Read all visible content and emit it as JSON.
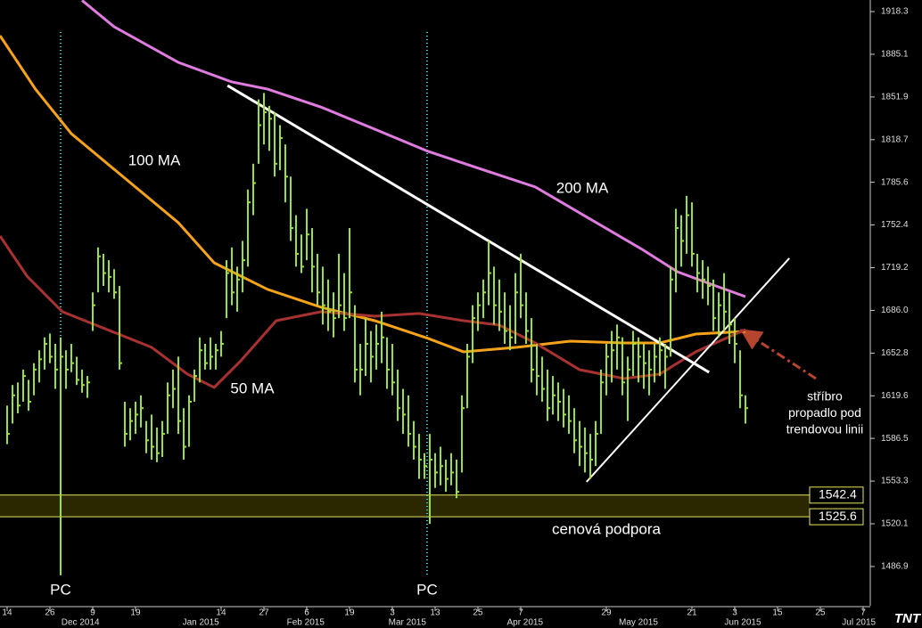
{
  "chart_data": {
    "type": "ohlc",
    "color": "#9be33c",
    "ylim": [
      1456.4,
      1927.3
    ],
    "xlim": [
      -1.33,
      161.17
    ],
    "yticks": [
      1918.3,
      1885.1,
      1851.9,
      1818.7,
      1785.6,
      1752.4,
      1719.2,
      {
        "value": 1686.0,
        "label": "1686.0"
      },
      1652.8,
      1619.6,
      1586.5,
      1553.3,
      1520.1,
      1486.9
    ],
    "xticks": [
      {
        "value": 0,
        "label": "14"
      },
      {
        "value": 8,
        "label": "26"
      },
      {
        "value": 16,
        "label": "9"
      },
      {
        "value": 24,
        "label": "19"
      },
      {
        "value": 40,
        "label": "14"
      },
      {
        "value": 48,
        "label": "27"
      },
      {
        "value": 56,
        "label": "6"
      },
      {
        "value": 64,
        "label": "19"
      },
      {
        "value": 72,
        "label": "3"
      },
      {
        "value": 80,
        "label": "13"
      },
      {
        "value": 88,
        "label": "25"
      },
      {
        "value": 96,
        "label": "7"
      },
      {
        "value": 112,
        "label": "29"
      },
      {
        "value": 128,
        "label": "21"
      },
      {
        "value": 136,
        "label": "3"
      },
      {
        "value": 144,
        "label": "15"
      },
      {
        "value": 152,
        "label": "25"
      },
      {
        "value": 160,
        "label": "7"
      }
    ],
    "month_labels": [
      {
        "value": 13.7,
        "label": "Dec 2014"
      },
      {
        "value": 36.2,
        "label": "Jan 2015"
      },
      {
        "value": 55.8,
        "label": "Feb 2015"
      },
      {
        "value": 74.8,
        "label": "Mar 2015"
      },
      {
        "value": 96.8,
        "label": "Apr 2015"
      },
      {
        "value": 118,
        "label": "May 2015"
      },
      {
        "value": 137.5,
        "label": "Jun 2015"
      },
      {
        "value": 159.2,
        "label": "Jul 2015"
      }
    ],
    "high": [
      1612,
      1628,
      1630,
      1640,
      1632,
      1645,
      1655,
      1665,
      1668,
      1660,
      1665,
      1655,
      1660,
      1650,
      1640,
      1635,
      1700,
      1735,
      1730,
      1725,
      1718,
      1705,
      1615,
      1610,
      1615,
      1620,
      1600,
      1605,
      1595,
      1600,
      1630,
      1640,
      1650,
      1610,
      1620,
      1640,
      1665,
      1660,
      1665,
      1660,
      1670,
      1725,
      1735,
      1720,
      1740,
      1780,
      1800,
      1850,
      1855,
      1845,
      1840,
      1830,
      1815,
      1790,
      1760,
      1745,
      1765,
      1750,
      1730,
      1720,
      1710,
      1700,
      1730,
      1715,
      1750,
      1690,
      1660,
      1680,
      1670,
      1675,
      1685,
      1665,
      1660,
      1640,
      1625,
      1620,
      1600,
      1590,
      1575,
      1590,
      1575,
      1580,
      1570,
      1575,
      1570,
      1620,
      1660,
      1690,
      1700,
      1710,
      1740,
      1720,
      1710,
      1700,
      1690,
      1715,
      1730,
      1700,
      1680,
      1660,
      1650,
      1640,
      1635,
      1630,
      1625,
      1620,
      1610,
      1600,
      1595,
      1590,
      1600,
      1640,
      1660,
      1670,
      1675,
      1665,
      1650,
      1670,
      1665,
      1660,
      1655,
      1660,
      1665,
      1660,
      1720,
      1765,
      1760,
      1775,
      1770,
      1730,
      1725,
      1720,
      1710,
      1700,
      1715,
      1700,
      1680,
      1655,
      1620
    ],
    "low": [
      1582,
      1598,
      1606,
      1615,
      1608,
      1620,
      1630,
      1640,
      1645,
      1625,
      1480,
      1625,
      1638,
      1628,
      1622,
      1618,
      1670,
      1700,
      1705,
      1700,
      1695,
      1640,
      1580,
      1585,
      1590,
      1595,
      1575,
      1570,
      1568,
      1572,
      1590,
      1610,
      1590,
      1570,
      1580,
      1615,
      1630,
      1640,
      1640,
      1640,
      1650,
      1680,
      1690,
      1685,
      1700,
      1720,
      1760,
      1800,
      1815,
      1810,
      1790,
      1795,
      1770,
      1740,
      1720,
      1715,
      1725,
      1700,
      1690,
      1675,
      1670,
      1665,
      1680,
      1670,
      1680,
      1630,
      1620,
      1635,
      1630,
      1640,
      1645,
      1625,
      1620,
      1600,
      1590,
      1580,
      1570,
      1555,
      1555,
      1520,
      1548,
      1550,
      1545,
      1550,
      1540,
      1560,
      1610,
      1645,
      1670,
      1680,
      1690,
      1675,
      1670,
      1660,
      1655,
      1660,
      1680,
      1660,
      1630,
      1620,
      1615,
      1600,
      1605,
      1600,
      1595,
      1590,
      1575,
      1565,
      1560,
      1555,
      1565,
      1590,
      1620,
      1630,
      1640,
      1620,
      1600,
      1635,
      1630,
      1625,
      1620,
      1630,
      1635,
      1625,
      1650,
      1700,
      1720,
      1730,
      1720,
      1700,
      1695,
      1690,
      1670,
      1665,
      1670,
      1660,
      1645,
      1610,
      1598
    ],
    "close": [
      1590,
      1620,
      1612,
      1635,
      1615,
      1640,
      1648,
      1660,
      1650,
      1640,
      1650,
      1640,
      1645,
      1632,
      1628,
      1630,
      1690,
      1728,
      1715,
      1712,
      1700,
      1645,
      1590,
      1600,
      1605,
      1610,
      1585,
      1580,
      1575,
      1590,
      1620,
      1625,
      1600,
      1580,
      1615,
      1635,
      1655,
      1645,
      1650,
      1655,
      1660,
      1715,
      1700,
      1710,
      1725,
      1770,
      1785,
      1830,
      1840,
      1835,
      1800,
      1820,
      1790,
      1750,
      1730,
      1720,
      1745,
      1720,
      1700,
      1690,
      1685,
      1680,
      1690,
      1680,
      1700,
      1640,
      1640,
      1660,
      1650,
      1660,
      1665,
      1640,
      1630,
      1610,
      1605,
      1590,
      1580,
      1570,
      1565,
      1570,
      1560,
      1565,
      1555,
      1560,
      1545,
      1610,
      1650,
      1680,
      1690,
      1700,
      1715,
      1690,
      1685,
      1670,
      1665,
      1700,
      1690,
      1670,
      1640,
      1635,
      1625,
      1610,
      1620,
      1615,
      1605,
      1600,
      1585,
      1580,
      1575,
      1570,
      1590,
      1630,
      1650,
      1655,
      1665,
      1630,
      1640,
      1660,
      1650,
      1645,
      1640,
      1650,
      1655,
      1650,
      1710,
      1750,
      1740,
      1760,
      1730,
      1715,
      1710,
      1705,
      1680,
      1690,
      1685,
      1675,
      1660,
      1620,
      1610
    ],
    "series": [
      {
        "name": "200 MA",
        "color": "#e07ce0",
        "x": [
          14,
          20,
          32,
          42,
          48.7,
          58.7,
          68.7,
          78.7,
          88.7,
          98.7,
          108.7,
          118.7,
          125.3,
          132,
          138
        ],
        "values": [
          1927,
          1906.5,
          1878.8,
          1863.6,
          1858,
          1844,
          1826.9,
          1809.6,
          1795.7,
          1782,
          1757.7,
          1733.4,
          1716,
          1705.7,
          1696.7
        ]
      },
      {
        "name": "100 MA",
        "color": "#f7a21b",
        "x": [
          -1.33,
          5.3,
          12,
          22,
          32,
          38.7,
          48.7,
          58.7,
          68.7,
          78.7,
          85.3,
          95.3,
          105.3,
          115.3,
          122,
          128.7,
          138
        ],
        "values": [
          1899.6,
          1858,
          1823.4,
          1788.8,
          1754.2,
          1723,
          1702.3,
          1688.4,
          1678,
          1664.2,
          1653.8,
          1657.3,
          1662.1,
          1660.7,
          1660.7,
          1667.6,
          1669.7
        ]
      },
      {
        "name": "50 MA",
        "color": "#a83232",
        "x": [
          -1.33,
          3.7,
          10.3,
          18.7,
          27,
          33.7,
          38.7,
          43.7,
          50.3,
          58.7,
          68.7,
          77,
          85.3,
          92,
          98.7,
          107,
          115.3,
          122,
          128.7,
          138
        ],
        "values": [
          1743.8,
          1712.7,
          1685,
          1671.1,
          1657.3,
          1636.5,
          1626.1,
          1646.9,
          1678,
          1685,
          1681.5,
          1683.6,
          1678,
          1674.6,
          1660.7,
          1639.9,
          1633,
          1636.5,
          1653.8,
          1671.1
        ]
      }
    ],
    "trendlines": [
      {
        "x": [
          41.2,
          131.2
        ],
        "values": [
          1860.8,
          1637.9
        ]
      },
      {
        "x": [
          108.3,
          146.2
        ],
        "values": [
          1552.7,
          1726.5
        ]
      }
    ],
    "pc_markers": [
      {
        "x": 10,
        "label": "PC"
      },
      {
        "x": 78.5,
        "label": "PC"
      }
    ],
    "support_zone": {
      "values": [
        1542.4,
        1525.6
      ],
      "label": "cenová podpora"
    },
    "note": [
      "stříbro",
      "propadlo pod",
      "trendovou linii"
    ],
    "logo": "TNT"
  }
}
